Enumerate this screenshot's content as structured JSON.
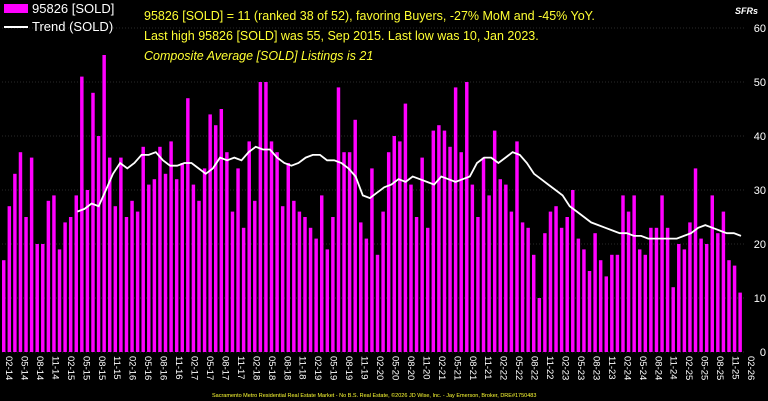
{
  "brand": "SFRs",
  "legend": {
    "sold_label": "95826 [SOLD]",
    "trend_label": "Trend (SOLD)"
  },
  "info": {
    "line1": "95826 [SOLD] = 11 (ranked 38 of 52), favoring Buyers, -27% MoM and -45% YoY.",
    "line2": "Last high 95826 [SOLD] was 55, Sep 2015. Last low was 10, Jan 2023.",
    "line3": "Composite Average [SOLD] Listings is 21"
  },
  "footer": "Sacramento Metro Residential Real Estate Market - No B.S. Real Estate, ©2026 JD Wise, Inc. - Jay Emerson, Broker, DRE#1750483",
  "colors": {
    "bar": "#ff00ff",
    "trend": "#ffffff",
    "info": "#ffff33",
    "grid": "#555555",
    "background": "#000000"
  },
  "chart_data": {
    "type": "bar",
    "title": "",
    "xlabel": "",
    "ylabel": "",
    "ylim": [
      0,
      60
    ],
    "y_ticks": [
      0,
      10,
      20,
      30,
      40,
      50,
      60
    ],
    "grid": true,
    "legend_position": "top-left",
    "x_tick_labels": [
      "02-14",
      "05-14",
      "08-14",
      "11-14",
      "02-15",
      "05-15",
      "08-15",
      "11-15",
      "02-16",
      "05-16",
      "08-16",
      "11-16",
      "02-17",
      "05-17",
      "08-17",
      "11-17",
      "02-18",
      "05-18",
      "08-18",
      "11-18",
      "02-19",
      "05-19",
      "08-19",
      "11-19",
      "02-20",
      "05-20",
      "08-20",
      "11-20",
      "02-21",
      "05-21",
      "08-21",
      "11-21",
      "02-22",
      "05-22",
      "08-22",
      "11-22",
      "02-23",
      "05-23",
      "08-23",
      "11-23",
      "02-24",
      "05-24",
      "08-24",
      "11-24",
      "02-25",
      "05-25",
      "08-25",
      "11-25",
      "02-26"
    ],
    "series": [
      {
        "name": "95826 [SOLD]",
        "type": "bar",
        "values": [
          17,
          27,
          33,
          37,
          25,
          36,
          20,
          20,
          28,
          29,
          19,
          24,
          25,
          29,
          51,
          30,
          48,
          40,
          55,
          36,
          27,
          36,
          25,
          28,
          26,
          38,
          31,
          32,
          38,
          33,
          39,
          32,
          35,
          47,
          31,
          28,
          34,
          44,
          42,
          45,
          37,
          26,
          34,
          23,
          39,
          28,
          50,
          50,
          39,
          37,
          27,
          35,
          28,
          26,
          25,
          23,
          21,
          29,
          19,
          25,
          49,
          37,
          37,
          43,
          24,
          21,
          34,
          18,
          26,
          37,
          40,
          39,
          46,
          31,
          25,
          36,
          23,
          41,
          42,
          41,
          38,
          49,
          37,
          50,
          31,
          25,
          36,
          29,
          41,
          32,
          31,
          26,
          39,
          24,
          23,
          18,
          10,
          22,
          26,
          27,
          23,
          25,
          30,
          21,
          19,
          15,
          22,
          17,
          14,
          18,
          18,
          29,
          26,
          29,
          19,
          18,
          23,
          23,
          29,
          23,
          12,
          20,
          19,
          24,
          34,
          21,
          20,
          29,
          22,
          26,
          17,
          16,
          11
        ]
      },
      {
        "name": "Trend (SOLD)",
        "type": "line",
        "values": [
          26,
          26.5,
          27.5,
          27,
          30,
          33,
          35,
          34,
          35,
          36.5,
          36.5,
          37,
          35.5,
          34.5,
          34.5,
          35,
          35,
          34,
          33,
          34,
          36,
          35.5,
          36,
          35.5,
          37,
          38,
          37.5,
          37.5,
          36,
          35,
          34.5,
          35,
          36,
          36.5,
          36.5,
          35.5,
          35.5,
          35,
          34,
          32.5,
          29,
          28.5,
          29.5,
          30.5,
          31,
          32,
          31.5,
          32.5,
          32,
          31.5,
          31,
          32.5,
          32,
          31.5,
          32,
          32.5,
          35,
          36,
          36,
          35,
          36,
          37,
          36.5,
          35,
          33,
          32,
          31,
          30,
          29,
          27,
          26,
          25,
          24,
          23.5,
          23,
          22.5,
          22,
          22,
          21.5,
          21.5,
          21,
          21,
          21,
          21,
          21,
          21.5,
          22,
          23,
          23.5,
          23,
          22.5,
          22,
          22,
          21.5
        ]
      }
    ]
  }
}
